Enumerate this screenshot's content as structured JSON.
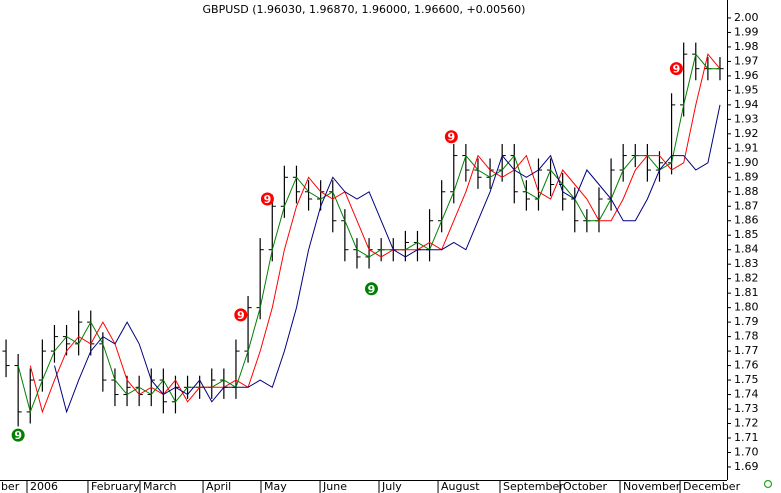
{
  "chart_data": {
    "type": "ohlc",
    "title": "GBPUSD (1.96030, 1.96870, 1.96000, 1.96600, +0.00560)",
    "bar_color": "#000000",
    "open": [
      1.77,
      1.76,
      1.728,
      1.75,
      1.77,
      1.78,
      1.775,
      1.79,
      1.775,
      1.75,
      1.74,
      1.745,
      1.74,
      1.75,
      1.735,
      1.745,
      1.745,
      1.745,
      1.75,
      1.745,
      1.77,
      1.8,
      1.84,
      1.87,
      1.89,
      1.88,
      1.875,
      1.88,
      1.86,
      1.84,
      1.835,
      1.84,
      1.84,
      1.84,
      1.845,
      1.84,
      1.86,
      1.88,
      1.905,
      1.895,
      1.89,
      1.895,
      1.905,
      1.88,
      1.875,
      1.895,
      1.885,
      1.875,
      1.86,
      1.86,
      1.875,
      1.895,
      1.905,
      1.905,
      1.895,
      1.9,
      1.94,
      1.975,
      1.965,
      1.965
    ],
    "high": [
      1.778,
      1.768,
      1.758,
      1.778,
      1.788,
      1.788,
      1.798,
      1.798,
      1.783,
      1.758,
      1.753,
      1.753,
      1.758,
      1.758,
      1.753,
      1.753,
      1.753,
      1.758,
      1.758,
      1.778,
      1.808,
      1.848,
      1.878,
      1.898,
      1.898,
      1.888,
      1.888,
      1.888,
      1.868,
      1.848,
      1.848,
      1.848,
      1.848,
      1.853,
      1.853,
      1.868,
      1.888,
      1.913,
      1.913,
      1.903,
      1.903,
      1.913,
      1.913,
      1.888,
      1.903,
      1.903,
      1.893,
      1.883,
      1.868,
      1.883,
      1.903,
      1.913,
      1.913,
      1.913,
      1.908,
      1.948,
      1.983,
      1.983,
      1.973,
      1.973
    ],
    "low": [
      1.752,
      1.718,
      1.72,
      1.742,
      1.762,
      1.767,
      1.767,
      1.767,
      1.742,
      1.732,
      1.732,
      1.732,
      1.732,
      1.727,
      1.727,
      1.737,
      1.737,
      1.737,
      1.737,
      1.737,
      1.762,
      1.792,
      1.832,
      1.862,
      1.872,
      1.867,
      1.867,
      1.852,
      1.832,
      1.827,
      1.827,
      1.832,
      1.832,
      1.832,
      1.832,
      1.832,
      1.852,
      1.872,
      1.887,
      1.882,
      1.882,
      1.887,
      1.872,
      1.867,
      1.867,
      1.877,
      1.867,
      1.852,
      1.852,
      1.852,
      1.867,
      1.887,
      1.897,
      1.887,
      1.887,
      1.892,
      1.932,
      1.957,
      1.957,
      1.957
    ],
    "close": [
      1.76,
      1.728,
      1.75,
      1.77,
      1.78,
      1.775,
      1.79,
      1.775,
      1.75,
      1.74,
      1.745,
      1.74,
      1.75,
      1.735,
      1.745,
      1.745,
      1.745,
      1.75,
      1.745,
      1.77,
      1.8,
      1.84,
      1.87,
      1.89,
      1.88,
      1.875,
      1.88,
      1.86,
      1.84,
      1.835,
      1.84,
      1.84,
      1.84,
      1.845,
      1.84,
      1.86,
      1.88,
      1.905,
      1.895,
      1.89,
      1.895,
      1.905,
      1.88,
      1.875,
      1.895,
      1.885,
      1.875,
      1.86,
      1.86,
      1.875,
      1.895,
      1.905,
      1.905,
      1.895,
      1.9,
      1.94,
      1.975,
      1.965,
      1.965,
      1.965
    ],
    "series": [
      {
        "color": "#008000",
        "values": [
          null,
          1.76,
          1.728,
          1.75,
          1.77,
          1.78,
          1.775,
          1.79,
          1.775,
          1.75,
          1.74,
          1.745,
          1.74,
          1.75,
          1.735,
          1.745,
          1.745,
          1.745,
          1.75,
          1.745,
          1.77,
          1.8,
          1.84,
          1.87,
          1.89,
          1.88,
          1.875,
          1.88,
          1.86,
          1.84,
          1.835,
          1.84,
          1.84,
          1.84,
          1.845,
          1.84,
          1.86,
          1.88,
          1.905,
          1.895,
          1.89,
          1.895,
          1.905,
          1.88,
          1.875,
          1.895,
          1.885,
          1.875,
          1.86,
          1.86,
          1.875,
          1.895,
          1.905,
          1.905,
          1.895,
          1.9,
          1.94,
          1.975,
          1.965,
          1.965
        ]
      },
      {
        "color": "#ff0000",
        "values": [
          null,
          null,
          1.76,
          1.728,
          1.75,
          1.77,
          1.78,
          1.775,
          1.79,
          1.775,
          1.75,
          1.74,
          1.745,
          1.74,
          1.75,
          1.735,
          1.745,
          1.745,
          1.745,
          1.75,
          1.745,
          1.77,
          1.8,
          1.84,
          1.87,
          1.89,
          1.88,
          1.875,
          1.88,
          1.86,
          1.84,
          1.835,
          1.84,
          1.84,
          1.84,
          1.845,
          1.84,
          1.86,
          1.88,
          1.905,
          1.895,
          1.89,
          1.895,
          1.905,
          1.88,
          1.875,
          1.895,
          1.885,
          1.875,
          1.86,
          1.86,
          1.875,
          1.895,
          1.905,
          1.905,
          1.895,
          1.9,
          1.94,
          1.975,
          1.965
        ]
      },
      {
        "color": "#000080",
        "values": [
          null,
          null,
          null,
          null,
          1.76,
          1.728,
          1.75,
          1.77,
          1.78,
          1.775,
          1.79,
          1.775,
          1.75,
          1.74,
          1.745,
          1.74,
          1.75,
          1.735,
          1.745,
          1.745,
          1.745,
          1.75,
          1.745,
          1.77,
          1.8,
          1.84,
          1.87,
          1.89,
          1.88,
          1.875,
          1.88,
          1.86,
          1.84,
          1.835,
          1.84,
          1.84,
          1.84,
          1.845,
          1.84,
          1.86,
          1.88,
          1.905,
          1.895,
          1.89,
          1.895,
          1.905,
          1.88,
          1.875,
          1.895,
          1.885,
          1.875,
          1.86,
          1.86,
          1.875,
          1.895,
          1.905,
          1.905,
          1.895,
          1.9,
          1.94
        ]
      }
    ],
    "annotations": [
      {
        "x": 1.0,
        "y": 1.712,
        "label": "9",
        "color": "#008000"
      },
      {
        "x": 19.4,
        "y": 1.795,
        "label": "9",
        "color": "#ff0000"
      },
      {
        "x": 21.6,
        "y": 1.875,
        "label": "9",
        "color": "#ff0000"
      },
      {
        "x": 30.2,
        "y": 1.813,
        "label": "9",
        "color": "#008000"
      },
      {
        "x": 36.8,
        "y": 1.918,
        "label": "9",
        "color": "#ff0000"
      },
      {
        "x": 55.4,
        "y": 1.965,
        "label": "9",
        "color": "#ff0000"
      }
    ],
    "xlim": [
      -0.5,
      59.58
    ],
    "xticks": [
      {
        "value": -0.67,
        "label": "ber"
      },
      {
        "value": 1.73,
        "label": "2006"
      },
      {
        "value": 6.77,
        "label": "February"
      },
      {
        "value": 11.07,
        "label": "March"
      },
      {
        "value": 16.28,
        "label": "April"
      },
      {
        "value": 21.07,
        "label": "May"
      },
      {
        "value": 25.95,
        "label": "June"
      },
      {
        "value": 30.82,
        "label": "July"
      },
      {
        "value": 35.7,
        "label": "August"
      },
      {
        "value": 40.82,
        "label": "September"
      },
      {
        "value": 45.78,
        "label": "October"
      },
      {
        "value": 50.74,
        "label": "November"
      },
      {
        "value": 55.7,
        "label": "December"
      }
    ],
    "ylim": [
      1.681,
      2.0124
    ],
    "yticks": [
      1.69,
      {
        "value": 1.7,
        "label": "1.70"
      },
      1.71,
      1.72,
      1.73,
      1.74,
      1.75,
      1.76,
      1.77,
      1.78,
      1.79,
      {
        "value": 1.8,
        "label": "1.80"
      },
      1.81,
      1.82,
      1.83,
      1.84,
      1.85,
      1.86,
      1.87,
      1.88,
      1.89,
      {
        "value": 1.9,
        "label": "1.90"
      },
      1.91,
      1.92,
      1.93,
      1.94,
      1.95,
      1.96,
      1.97,
      1.98,
      1.99,
      {
        "value": 2.0,
        "label": "2.00"
      }
    ]
  }
}
